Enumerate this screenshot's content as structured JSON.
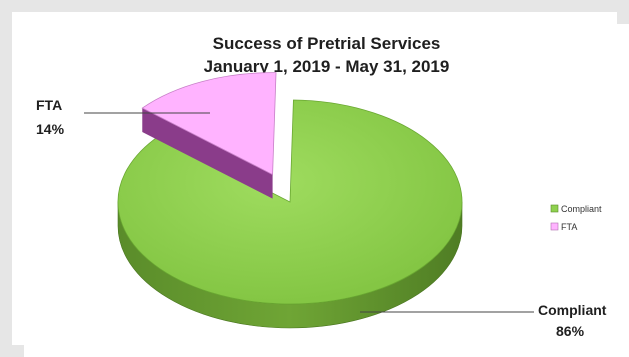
{
  "chart_data": {
    "type": "pie",
    "title": "Success of Pretrial Services",
    "subtitle": "January 1, 2019 - May 31, 2019",
    "slices": [
      {
        "name": "Compliant",
        "value": 86,
        "label": "86%",
        "color": "#8fd14f"
      },
      {
        "name": "FTA",
        "value": 14,
        "label": "14%",
        "color": "#ffb3ff"
      }
    ],
    "legend": {
      "placement": "right",
      "items": [
        "Compliant",
        "FTA"
      ]
    },
    "style": "3d-exploded"
  }
}
